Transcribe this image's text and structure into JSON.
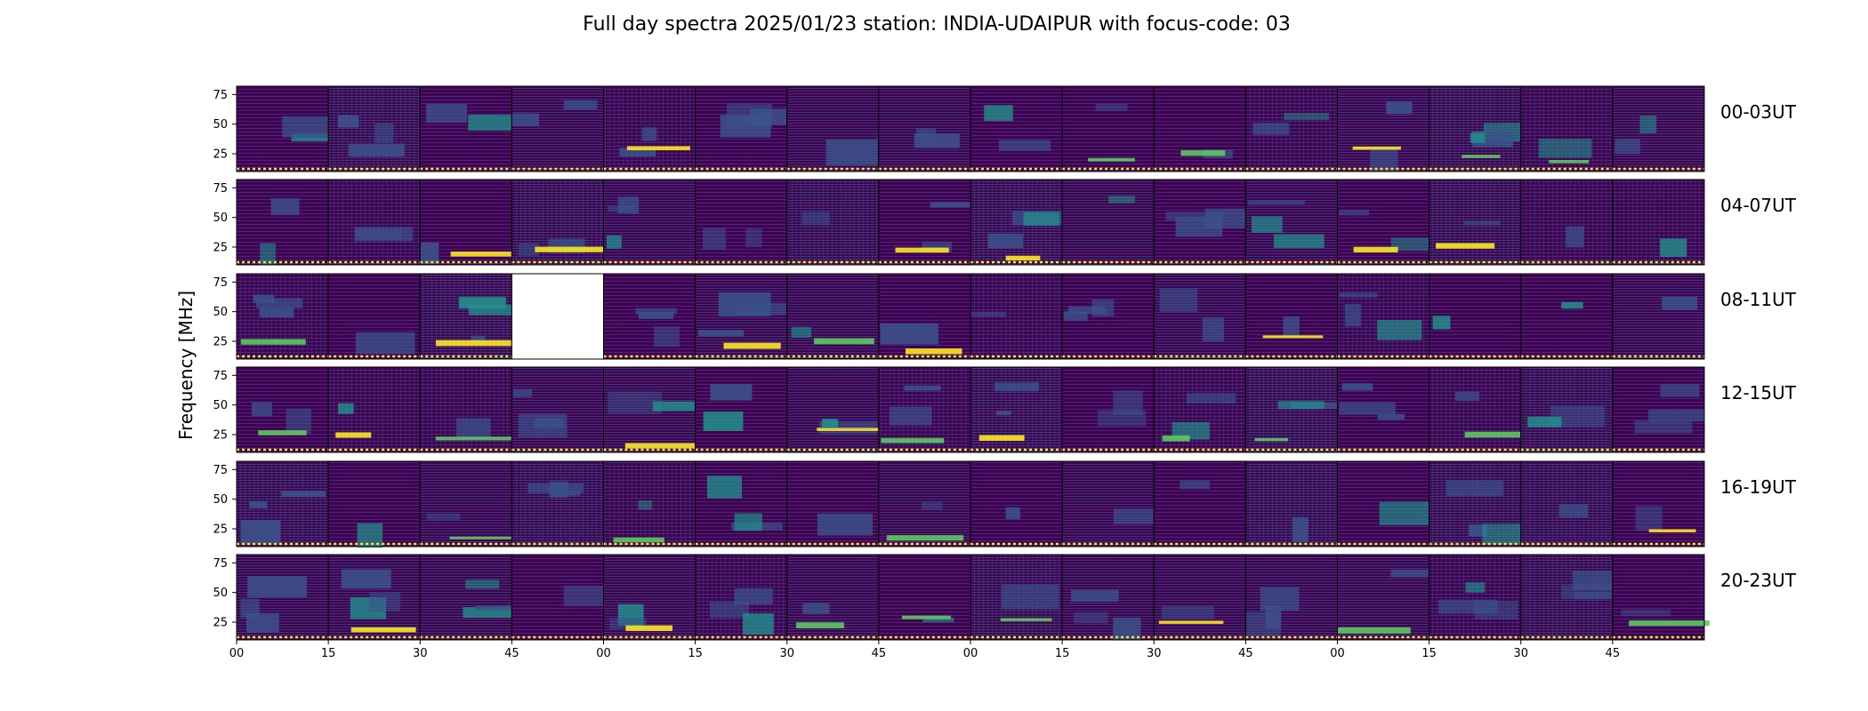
{
  "chart_data": {
    "type": "heatmap",
    "title": "Full day spectra 2025/01/23 station: INDIA-UDAIPUR with focus-code: 03",
    "ylabel": "Frequency [MHz]",
    "xlabel": "",
    "ylim": [
      10,
      82
    ],
    "y_ticks": [
      "25",
      "50",
      "75"
    ],
    "x_ticks": [
      "00",
      "15",
      "30",
      "45",
      "00",
      "15",
      "30",
      "45",
      "00",
      "15",
      "30",
      "45",
      "00",
      "15",
      "30",
      "45"
    ],
    "colormap": [
      "#440154",
      "#3b528b",
      "#21918c",
      "#5ec962",
      "#fde725"
    ],
    "rows": [
      {
        "label": "00-03UT",
        "panels_per_row": 16,
        "missing_panels": []
      },
      {
        "label": "04-07UT",
        "panels_per_row": 16,
        "missing_panels": []
      },
      {
        "label": "08-11UT",
        "panels_per_row": 16,
        "missing_panels": [
          3
        ]
      },
      {
        "label": "12-15UT",
        "panels_per_row": 16,
        "missing_panels": []
      },
      {
        "label": "16-19UT",
        "panels_per_row": 16,
        "missing_panels": []
      },
      {
        "label": "20-23UT",
        "panels_per_row": 16,
        "missing_panels": []
      }
    ],
    "grid": false,
    "legend": "none"
  }
}
